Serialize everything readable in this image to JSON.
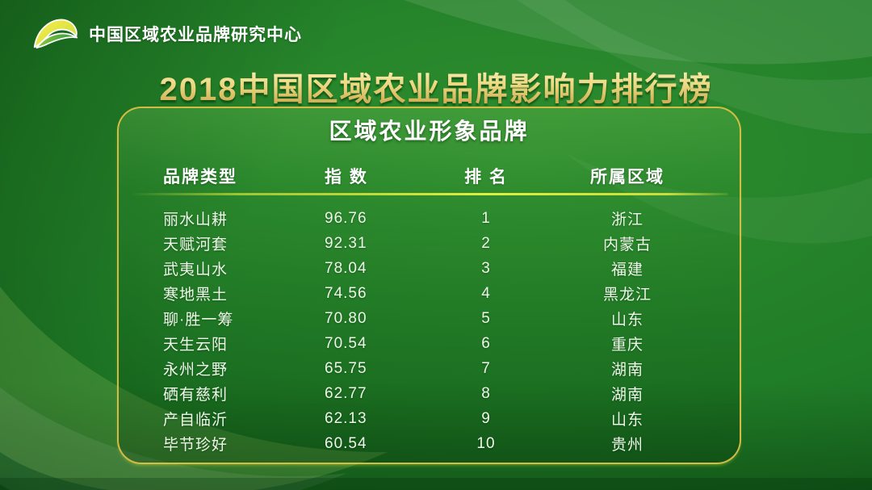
{
  "header": {
    "organization": "中国区域农业品牌研究中心",
    "main_title": "2018中国区域农业品牌影响力排行榜"
  },
  "panel": {
    "title": "区域农业形象品牌",
    "columns": [
      "品牌类型",
      "指 数",
      "排 名",
      "所属区域"
    ],
    "rows": [
      {
        "brand": "丽水山耕",
        "index": "96.76",
        "rank": "1",
        "region": "浙江"
      },
      {
        "brand": "天赋河套",
        "index": "92.31",
        "rank": "2",
        "region": "内蒙古"
      },
      {
        "brand": "武夷山水",
        "index": "78.04",
        "rank": "3",
        "region": "福建"
      },
      {
        "brand": "寒地黑土",
        "index": "74.56",
        "rank": "4",
        "region": "黑龙江"
      },
      {
        "brand": "聊·胜一筹",
        "index": "70.80",
        "rank": "5",
        "region": "山东"
      },
      {
        "brand": "天生云阳",
        "index": "70.54",
        "rank": "6",
        "region": "重庆"
      },
      {
        "brand": "永州之野",
        "index": "65.75",
        "rank": "7",
        "region": "湖南"
      },
      {
        "brand": "硒有慈利",
        "index": "62.77",
        "rank": "8",
        "region": "湖南"
      },
      {
        "brand": "产自临沂",
        "index": "62.13",
        "rank": "9",
        "region": "山东"
      },
      {
        "brand": "毕节珍好",
        "index": "60.54",
        "rank": "10",
        "region": "贵州"
      }
    ]
  },
  "chart_data": {
    "type": "table",
    "title": "2018中国区域农业品牌影响力排行榜",
    "subtitle": "区域农业形象品牌",
    "columns": [
      "品牌类型",
      "指数",
      "排名",
      "所属区域"
    ],
    "rows": [
      [
        "丽水山耕",
        96.76,
        1,
        "浙江"
      ],
      [
        "天赋河套",
        92.31,
        2,
        "内蒙古"
      ],
      [
        "武夷山水",
        78.04,
        3,
        "福建"
      ],
      [
        "寒地黑土",
        74.56,
        4,
        "黑龙江"
      ],
      [
        "聊·胜一筹",
        70.8,
        5,
        "山东"
      ],
      [
        "天生云阳",
        70.54,
        6,
        "重庆"
      ],
      [
        "永州之野",
        65.75,
        7,
        "湖南"
      ],
      [
        "硒有慈利",
        62.77,
        8,
        "湖南"
      ],
      [
        "产自临沂",
        62.13,
        9,
        "山东"
      ],
      [
        "毕节珍好",
        60.54,
        10,
        "贵州"
      ]
    ],
    "index_range": [
      60.54,
      96.76
    ]
  },
  "colors": {
    "background_green": "#217e28",
    "background_light": "#2e8d2e",
    "background_dark": "#115f1c",
    "panel_border_gold": "#dec046",
    "title_gold": "#ecd77f",
    "divider_yellow_green": "#dfef3e",
    "text_white": "#ffffff",
    "logo_yellow": "#f5e94d",
    "logo_green": "#3f9c3c"
  }
}
